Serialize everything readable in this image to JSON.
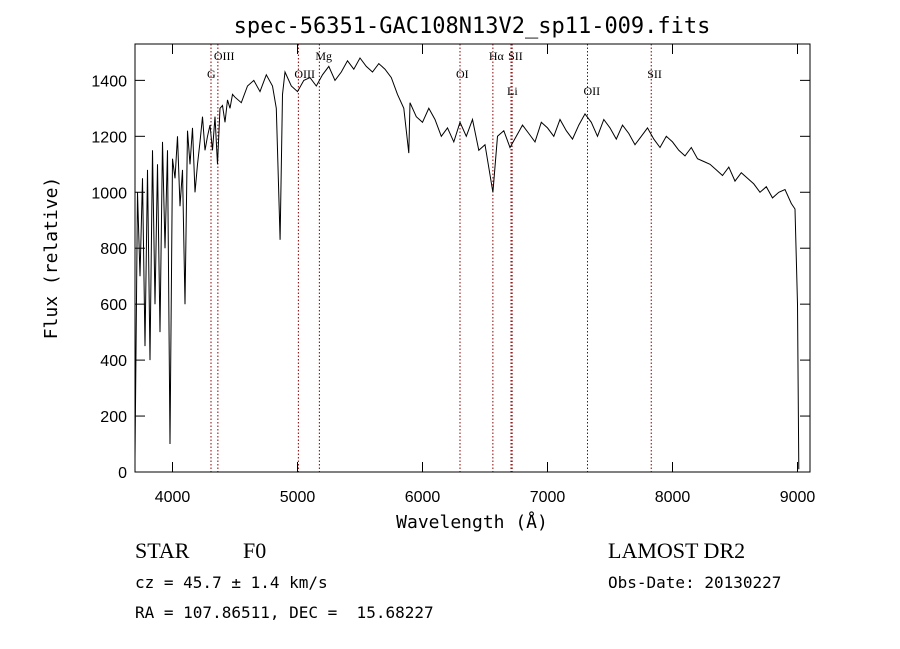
{
  "chart_data": {
    "type": "line",
    "title": "spec-56351-GAC108N13V2_sp11-009.fits",
    "xlabel": "Wavelength (Å)",
    "ylabel": "Flux (relative)",
    "xlim": [
      3700,
      9100
    ],
    "ylim": [
      0,
      1530
    ],
    "x_ticks": [
      4000,
      5000,
      6000,
      7000,
      8000,
      9000
    ],
    "y_ticks": [
      0,
      200,
      400,
      600,
      800,
      1000,
      1200,
      1400
    ],
    "grid": false,
    "line_color": "#000000",
    "marker_color": "#8b0000",
    "series": [
      {
        "x": [
          3700,
          3720,
          3740,
          3760,
          3780,
          3800,
          3820,
          3840,
          3860,
          3880,
          3900,
          3920,
          3940,
          3960,
          3980,
          4000,
          4020,
          4040,
          4060,
          4080,
          4100,
          4120,
          4140,
          4160,
          4180,
          4200,
          4220,
          4240,
          4260,
          4280,
          4300,
          4320,
          4340,
          4360,
          4380,
          4400,
          4420,
          4440,
          4460,
          4480,
          4500,
          4550,
          4600,
          4650,
          4700,
          4750,
          4800,
          4830,
          4861,
          4880,
          4900,
          4950,
          5000,
          5050,
          5100,
          5150,
          5200,
          5250,
          5300,
          5350,
          5400,
          5450,
          5500,
          5550,
          5600,
          5650,
          5700,
          5750,
          5800,
          5850,
          5890,
          5900,
          5950,
          6000,
          6050,
          6100,
          6150,
          6200,
          6250,
          6300,
          6350,
          6400,
          6450,
          6500,
          6563,
          6600,
          6650,
          6700,
          6750,
          6800,
          6850,
          6900,
          6950,
          7000,
          7050,
          7100,
          7150,
          7200,
          7250,
          7300,
          7350,
          7400,
          7450,
          7500,
          7550,
          7600,
          7650,
          7700,
          7750,
          7800,
          7850,
          7900,
          7950,
          8000,
          8050,
          8100,
          8150,
          8200,
          8250,
          8300,
          8350,
          8400,
          8450,
          8500,
          8550,
          8600,
          8650,
          8700,
          8750,
          8800,
          8850,
          8900,
          8950,
          8980,
          9000,
          9010
        ],
        "y": [
          50,
          1000,
          700,
          1050,
          450,
          1080,
          400,
          1150,
          600,
          1100,
          500,
          1180,
          800,
          1150,
          100,
          1120,
          1050,
          1200,
          950,
          1080,
          600,
          1220,
          1100,
          1230,
          1000,
          1100,
          1180,
          1270,
          1150,
          1200,
          1240,
          1150,
          1270,
          1100,
          1300,
          1310,
          1250,
          1330,
          1300,
          1350,
          1340,
          1320,
          1380,
          1400,
          1360,
          1420,
          1380,
          1300,
          830,
          1350,
          1430,
          1380,
          1360,
          1400,
          1410,
          1380,
          1420,
          1450,
          1400,
          1430,
          1470,
          1440,
          1480,
          1450,
          1430,
          1460,
          1440,
          1410,
          1350,
          1300,
          1140,
          1320,
          1270,
          1250,
          1300,
          1260,
          1200,
          1230,
          1180,
          1250,
          1200,
          1260,
          1150,
          1170,
          1000,
          1200,
          1220,
          1160,
          1200,
          1240,
          1210,
          1180,
          1250,
          1230,
          1200,
          1260,
          1220,
          1190,
          1240,
          1280,
          1250,
          1200,
          1260,
          1230,
          1190,
          1240,
          1210,
          1170,
          1200,
          1230,
          1190,
          1160,
          1200,
          1180,
          1150,
          1130,
          1160,
          1120,
          1110,
          1100,
          1080,
          1060,
          1090,
          1040,
          1070,
          1050,
          1030,
          1000,
          1020,
          980,
          1000,
          1010,
          960,
          940,
          600,
          10
        ]
      }
    ],
    "line_markers": [
      {
        "label": "OIII",
        "x": 4363,
        "row": 1
      },
      {
        "label": "G",
        "x": 4308,
        "row": 2
      },
      {
        "label": "OIII",
        "x": 5007,
        "row": 2
      },
      {
        "label": "Mg",
        "x": 5175,
        "row": 1
      },
      {
        "label": "OI",
        "x": 6300,
        "row": 2
      },
      {
        "label": "Hα",
        "x": 6563,
        "row": 1
      },
      {
        "label": "SII",
        "x": 6717,
        "row": 1
      },
      {
        "label": "Li",
        "x": 6708,
        "row": 3
      },
      {
        "label": "OII",
        "x": 7320,
        "row": 3
      },
      {
        "label": "SII",
        "x": 7830,
        "row": 2
      }
    ]
  },
  "info": {
    "object_class": "STAR",
    "subclass": "F0",
    "survey": "LAMOST DR2",
    "redshift": "cz = 45.7 ± 1.4 km/s",
    "obs_date": "Obs-Date: 20130227",
    "coordinates": "RA = 107.86511, DEC =  15.68227"
  }
}
